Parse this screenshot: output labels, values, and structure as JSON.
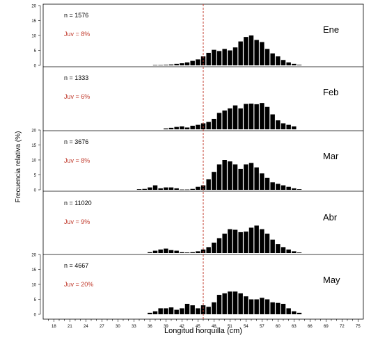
{
  "chart_data": {
    "type": "bar",
    "xlabel": "Longitud horquilla (cm)",
    "ylabel": "Frecuencia relativa (%)",
    "x_tick_labels": [
      "18",
      "21",
      "24",
      "27",
      "30",
      "33",
      "36",
      "39",
      "42",
      "45",
      "48",
      "51",
      "54",
      "57",
      "60",
      "63",
      "66",
      "69",
      "72",
      "75"
    ],
    "y_tick_labels": [
      "0",
      "5",
      "10",
      "15",
      "20"
    ],
    "x_tick_values": [
      18,
      21,
      24,
      27,
      30,
      33,
      36,
      39,
      42,
      45,
      48,
      51,
      54,
      57,
      60,
      63,
      66,
      69,
      72,
      75
    ],
    "y_tick_values": [
      0,
      5,
      10,
      15,
      20
    ],
    "xlim": [
      16,
      76
    ],
    "ylim": [
      0,
      20
    ],
    "bin_width": 1,
    "reference_line_x": 46,
    "reference_line_color": "#c0392b",
    "juvenile_text_color": "#c0392b",
    "bar_color": "#000000",
    "panels": [
      {
        "month": "Ene",
        "n_text": "n = 1576",
        "juv_text": "Juv = 8%",
        "x": [
          37,
          38,
          39,
          40,
          41,
          42,
          43,
          44,
          45,
          46,
          47,
          48,
          49,
          50,
          51,
          52,
          53,
          54,
          55,
          56,
          57,
          58,
          59,
          60,
          61,
          62,
          63,
          64
        ],
        "values": [
          0.1,
          0.1,
          0.2,
          0.3,
          0.5,
          0.7,
          1.0,
          1.5,
          2.0,
          3.0,
          4.2,
          5.2,
          4.8,
          5.5,
          5.0,
          6.0,
          8.0,
          9.5,
          10.0,
          8.5,
          7.8,
          5.5,
          4.0,
          3.0,
          1.8,
          1.0,
          0.5,
          0.2
        ]
      },
      {
        "month": "Feb",
        "n_text": "n = 1333",
        "juv_text": "Juv = 6%",
        "x": [
          39,
          40,
          41,
          42,
          43,
          44,
          45,
          46,
          47,
          48,
          49,
          50,
          51,
          52,
          53,
          54,
          55,
          56,
          57,
          58,
          59,
          60,
          61,
          62,
          63
        ],
        "values": [
          0.3,
          0.5,
          0.8,
          1.0,
          0.6,
          1.2,
          1.5,
          2.0,
          2.5,
          3.5,
          5.5,
          6.3,
          7.0,
          8.0,
          7.0,
          8.5,
          8.6,
          8.4,
          8.8,
          7.5,
          5.0,
          3.0,
          2.0,
          1.5,
          1.0
        ]
      },
      {
        "month": "Mar",
        "n_text": "n = 3676",
        "juv_text": "Juv = 8%",
        "x": [
          34,
          35,
          36,
          37,
          38,
          39,
          40,
          41,
          42,
          43,
          44,
          45,
          46,
          47,
          48,
          49,
          50,
          51,
          52,
          53,
          54,
          55,
          56,
          57,
          58,
          59,
          60,
          61,
          62,
          63,
          64
        ],
        "values": [
          0.2,
          0.3,
          0.8,
          1.5,
          0.5,
          0.8,
          0.8,
          0.5,
          0.1,
          0.1,
          0.3,
          1.0,
          1.5,
          3.5,
          6.0,
          8.5,
          10.0,
          9.5,
          8.5,
          7.0,
          8.5,
          9.0,
          7.5,
          5.5,
          4.0,
          2.5,
          2.0,
          1.5,
          1.0,
          0.5,
          0.2
        ]
      },
      {
        "month": "Abr",
        "n_text": "n = 11020",
        "juv_text": "Juv = 9%",
        "x": [
          36,
          37,
          38,
          39,
          40,
          41,
          42,
          43,
          44,
          45,
          46,
          47,
          48,
          49,
          50,
          51,
          52,
          53,
          54,
          55,
          56,
          57,
          58,
          59,
          60,
          61,
          62,
          63,
          64
        ],
        "values": [
          0.3,
          0.8,
          1.2,
          1.5,
          1.0,
          0.8,
          0.3,
          0.2,
          0.3,
          0.6,
          1.2,
          2.0,
          3.5,
          5.0,
          6.5,
          8.0,
          7.8,
          7.0,
          7.2,
          8.5,
          9.2,
          8.0,
          6.5,
          4.5,
          3.0,
          2.0,
          1.2,
          0.6,
          0.2
        ]
      },
      {
        "month": "May",
        "n_text": "n = 4667",
        "juv_text": "Juv = 20%",
        "x": [
          36,
          37,
          38,
          39,
          40,
          41,
          42,
          43,
          44,
          45,
          46,
          47,
          48,
          49,
          50,
          51,
          52,
          53,
          54,
          55,
          56,
          57,
          58,
          59,
          60,
          61,
          62,
          63,
          64
        ],
        "values": [
          0.5,
          1.0,
          2.0,
          2.0,
          2.3,
          1.5,
          2.0,
          3.5,
          3.0,
          2.0,
          3.0,
          2.5,
          4.0,
          6.5,
          7.0,
          7.6,
          7.6,
          7.0,
          6.0,
          5.0,
          5.0,
          5.5,
          5.0,
          4.0,
          3.8,
          3.5,
          2.0,
          1.0,
          0.5
        ]
      }
    ]
  }
}
